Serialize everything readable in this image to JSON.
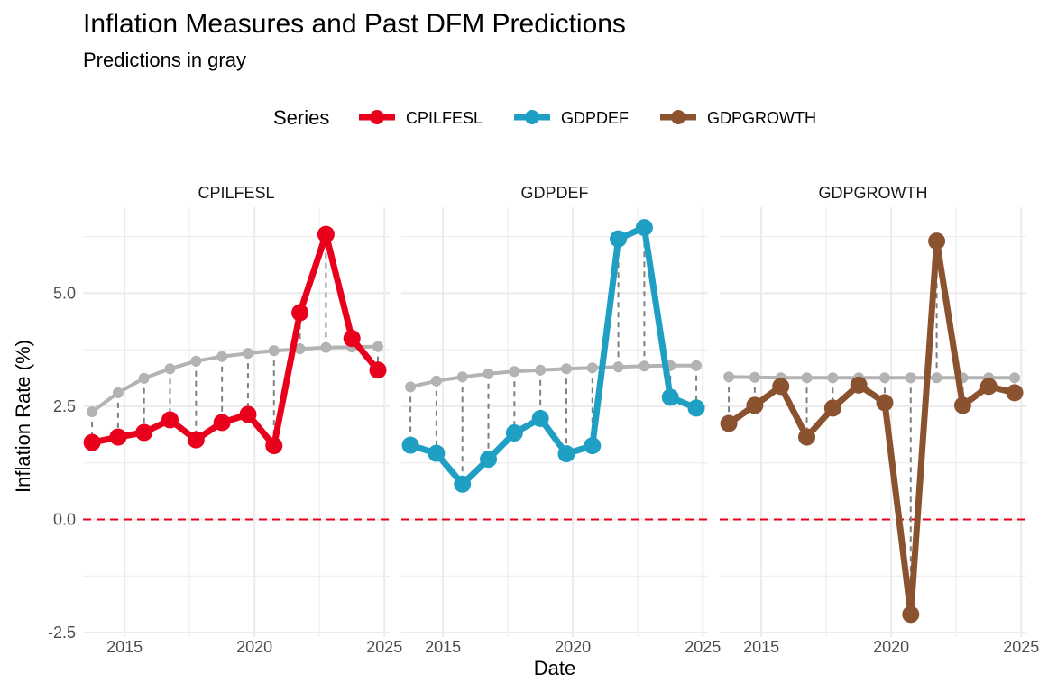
{
  "title": "Inflation Measures and Past DFM Predictions",
  "subtitle": "Predictions in gray",
  "legend": {
    "title": "Series",
    "items": [
      {
        "label": "CPILFESL",
        "color": "#e8001c"
      },
      {
        "label": "GDPDEF",
        "color": "#1f9fc4"
      },
      {
        "label": "GDPGROWTH",
        "color": "#8b5230"
      }
    ]
  },
  "colors": {
    "prediction": "#b3b3b3",
    "connector": "#808080",
    "zero_line": "#e8001c",
    "grid": "#ebebeb"
  },
  "chart_data": {
    "type": "line",
    "xlabel": "Date",
    "ylabel": "Inflation Rate (%)",
    "xlim": [
      2013.4,
      2025.2
    ],
    "ylim": [
      -2.6,
      6.9
    ],
    "x_ticks": [
      "2015",
      "2020",
      "2025"
    ],
    "y_ticks": [
      "-2.5",
      "0.0",
      "2.5",
      "5.0"
    ],
    "zero_line": "dashed",
    "grid": true,
    "legend_position": "top",
    "facets": [
      {
        "name": "CPILFESL",
        "x": [
          2013.75,
          2014.75,
          2015.75,
          2016.75,
          2017.75,
          2018.75,
          2019.75,
          2020.75,
          2021.75,
          2022.75,
          2023.75,
          2024.75
        ],
        "actual": [
          1.7,
          1.82,
          1.92,
          2.2,
          1.76,
          2.14,
          2.32,
          1.63,
          4.57,
          6.3,
          4.0,
          3.3
        ],
        "predicted": [
          2.38,
          2.8,
          3.12,
          3.33,
          3.5,
          3.6,
          3.67,
          3.73,
          3.77,
          3.8,
          3.81,
          3.82
        ]
      },
      {
        "name": "GDPDEF",
        "x": [
          2013.75,
          2014.75,
          2015.75,
          2016.75,
          2017.75,
          2018.75,
          2019.75,
          2020.75,
          2021.75,
          2022.75,
          2023.75,
          2024.75
        ],
        "actual": [
          1.64,
          1.46,
          0.78,
          1.33,
          1.91,
          2.23,
          1.45,
          1.63,
          6.2,
          6.45,
          2.7,
          2.46
        ],
        "predicted": [
          2.93,
          3.06,
          3.15,
          3.22,
          3.27,
          3.3,
          3.33,
          3.35,
          3.37,
          3.39,
          3.4,
          3.4
        ]
      },
      {
        "name": "GDPGROWTH",
        "x": [
          2013.75,
          2014.75,
          2015.75,
          2016.75,
          2017.75,
          2018.75,
          2019.75,
          2020.75,
          2021.75,
          2022.75,
          2023.75,
          2024.75
        ],
        "actual": [
          2.12,
          2.52,
          2.94,
          1.82,
          2.46,
          2.97,
          2.58,
          -2.1,
          6.15,
          2.52,
          2.94,
          2.8
        ],
        "predicted": [
          3.15,
          3.14,
          3.13,
          3.13,
          3.13,
          3.13,
          3.13,
          3.13,
          3.13,
          3.13,
          3.13,
          3.13
        ]
      }
    ]
  }
}
